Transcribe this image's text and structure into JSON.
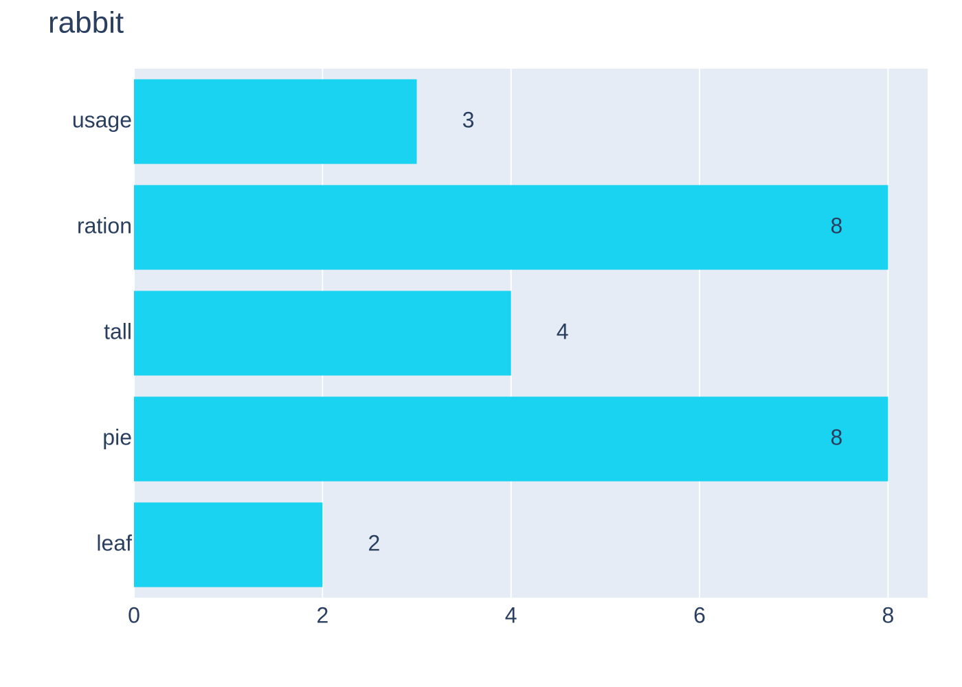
{
  "chart_data": {
    "type": "bar",
    "orientation": "horizontal",
    "title": "rabbit",
    "categories": [
      "usage",
      "ration",
      "tall",
      "pie",
      "leaf"
    ],
    "values": [
      3,
      8,
      4,
      8,
      2
    ],
    "color": "#1ad3f0",
    "xlim": [
      0,
      8.42
    ],
    "xticks": [
      0,
      2,
      4,
      6,
      8
    ],
    "grid": true
  }
}
